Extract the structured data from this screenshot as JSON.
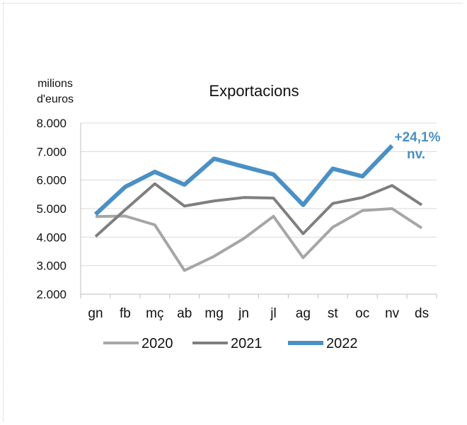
{
  "chart_data": {
    "type": "line",
    "title": "Exportacions",
    "ylabel_line1": "milions",
    "ylabel_line2": "d'euros",
    "xlabel": "",
    "ylim": [
      2000,
      8000
    ],
    "yticks": [
      2000,
      3000,
      4000,
      5000,
      6000,
      7000,
      8000
    ],
    "ytick_labels": [
      "2.000",
      "3.000",
      "4.000",
      "5.000",
      "6.000",
      "7.000",
      "8.000"
    ],
    "categories": [
      "gn",
      "fb",
      "mç",
      "ab",
      "mg",
      "jn",
      "jl",
      "ag",
      "st",
      "oc",
      "nv",
      "ds"
    ],
    "grid": "horizontal",
    "legend_position": "bottom",
    "series": [
      {
        "name": "2020",
        "color": "#a6a6a6",
        "values": [
          4720,
          4740,
          4430,
          2830,
          3330,
          3950,
          4730,
          3280,
          4350,
          4930,
          5000,
          4320
        ]
      },
      {
        "name": "2021",
        "color": "#7f7f7f",
        "values": [
          4020,
          4960,
          5870,
          5090,
          5270,
          5390,
          5370,
          4120,
          5180,
          5390,
          5810,
          5130
        ]
      },
      {
        "name": "2022",
        "color": "#4a90c4",
        "values": [
          4800,
          5760,
          6290,
          5840,
          6750,
          6470,
          6200,
          5130,
          6400,
          6130,
          7210,
          null
        ]
      }
    ],
    "annotation": {
      "line1": "+24,1%",
      "line2": "nv.",
      "color": "#4a90c4"
    }
  }
}
